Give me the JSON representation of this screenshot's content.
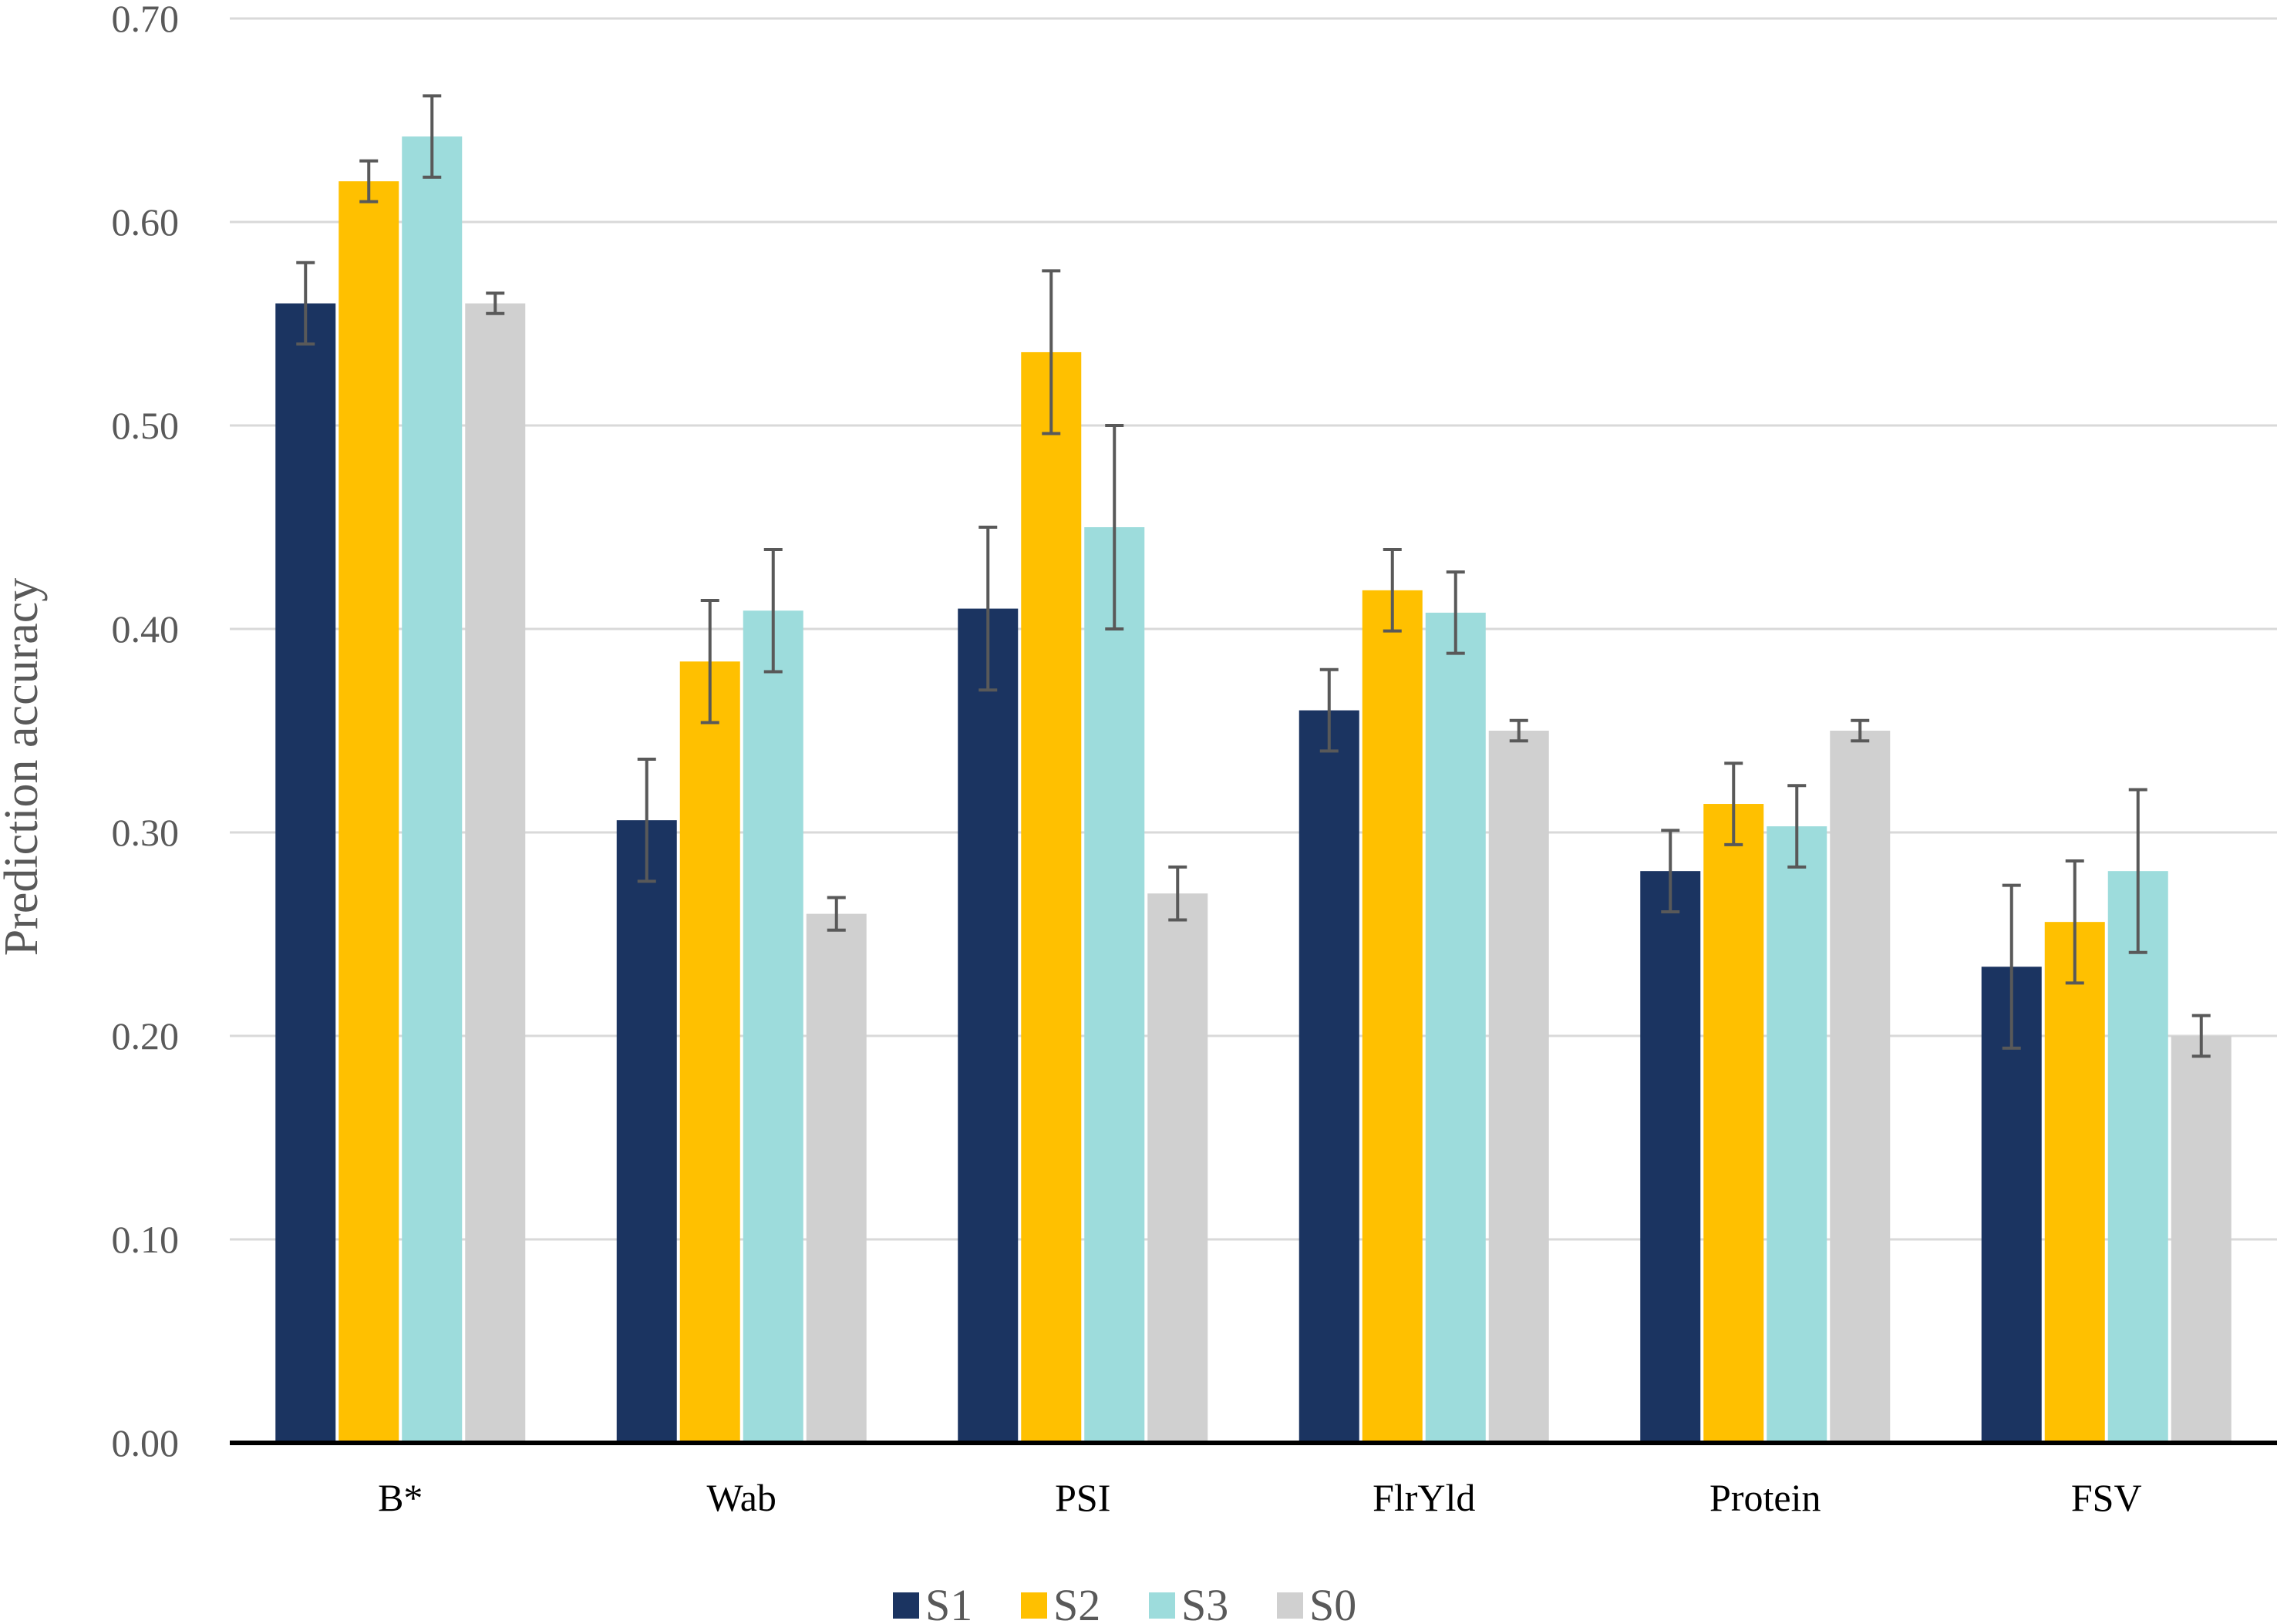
{
  "chart_data": {
    "type": "bar",
    "title": "",
    "xlabel": "",
    "ylabel": "Prediction accuracy",
    "ylim": [
      0,
      0.7
    ],
    "yticks": [
      "0.00",
      "0.10",
      "0.20",
      "0.30",
      "0.40",
      "0.50",
      "0.60",
      "0.70"
    ],
    "grid": true,
    "legend_position": "bottom",
    "categories": [
      "B*",
      "Wab",
      "PSI",
      "FlrYld",
      "Protein",
      "FSV"
    ],
    "series": [
      {
        "name": "S1",
        "color": "#1b3461",
        "values": [
          0.56,
          0.306,
          0.41,
          0.36,
          0.281,
          0.234
        ],
        "errors": [
          0.02,
          0.03,
          0.04,
          0.02,
          0.02,
          0.04
        ]
      },
      {
        "name": "S2",
        "color": "#ffc000",
        "values": [
          0.62,
          0.384,
          0.536,
          0.419,
          0.314,
          0.256
        ],
        "errors": [
          0.01,
          0.03,
          0.04,
          0.02,
          0.02,
          0.03
        ]
      },
      {
        "name": "S3",
        "color": "#9ddcdc",
        "values": [
          0.642,
          0.409,
          0.45,
          0.408,
          0.303,
          0.281
        ],
        "errors": [
          0.02,
          0.03,
          0.05,
          0.02,
          0.02,
          0.04
        ]
      },
      {
        "name": "S0",
        "color": "#d0d0d0",
        "values": [
          0.56,
          0.26,
          0.27,
          0.35,
          0.35,
          0.2
        ],
        "errors": [
          0.005,
          0.008,
          0.013,
          0.005,
          0.005,
          0.01
        ]
      }
    ]
  }
}
